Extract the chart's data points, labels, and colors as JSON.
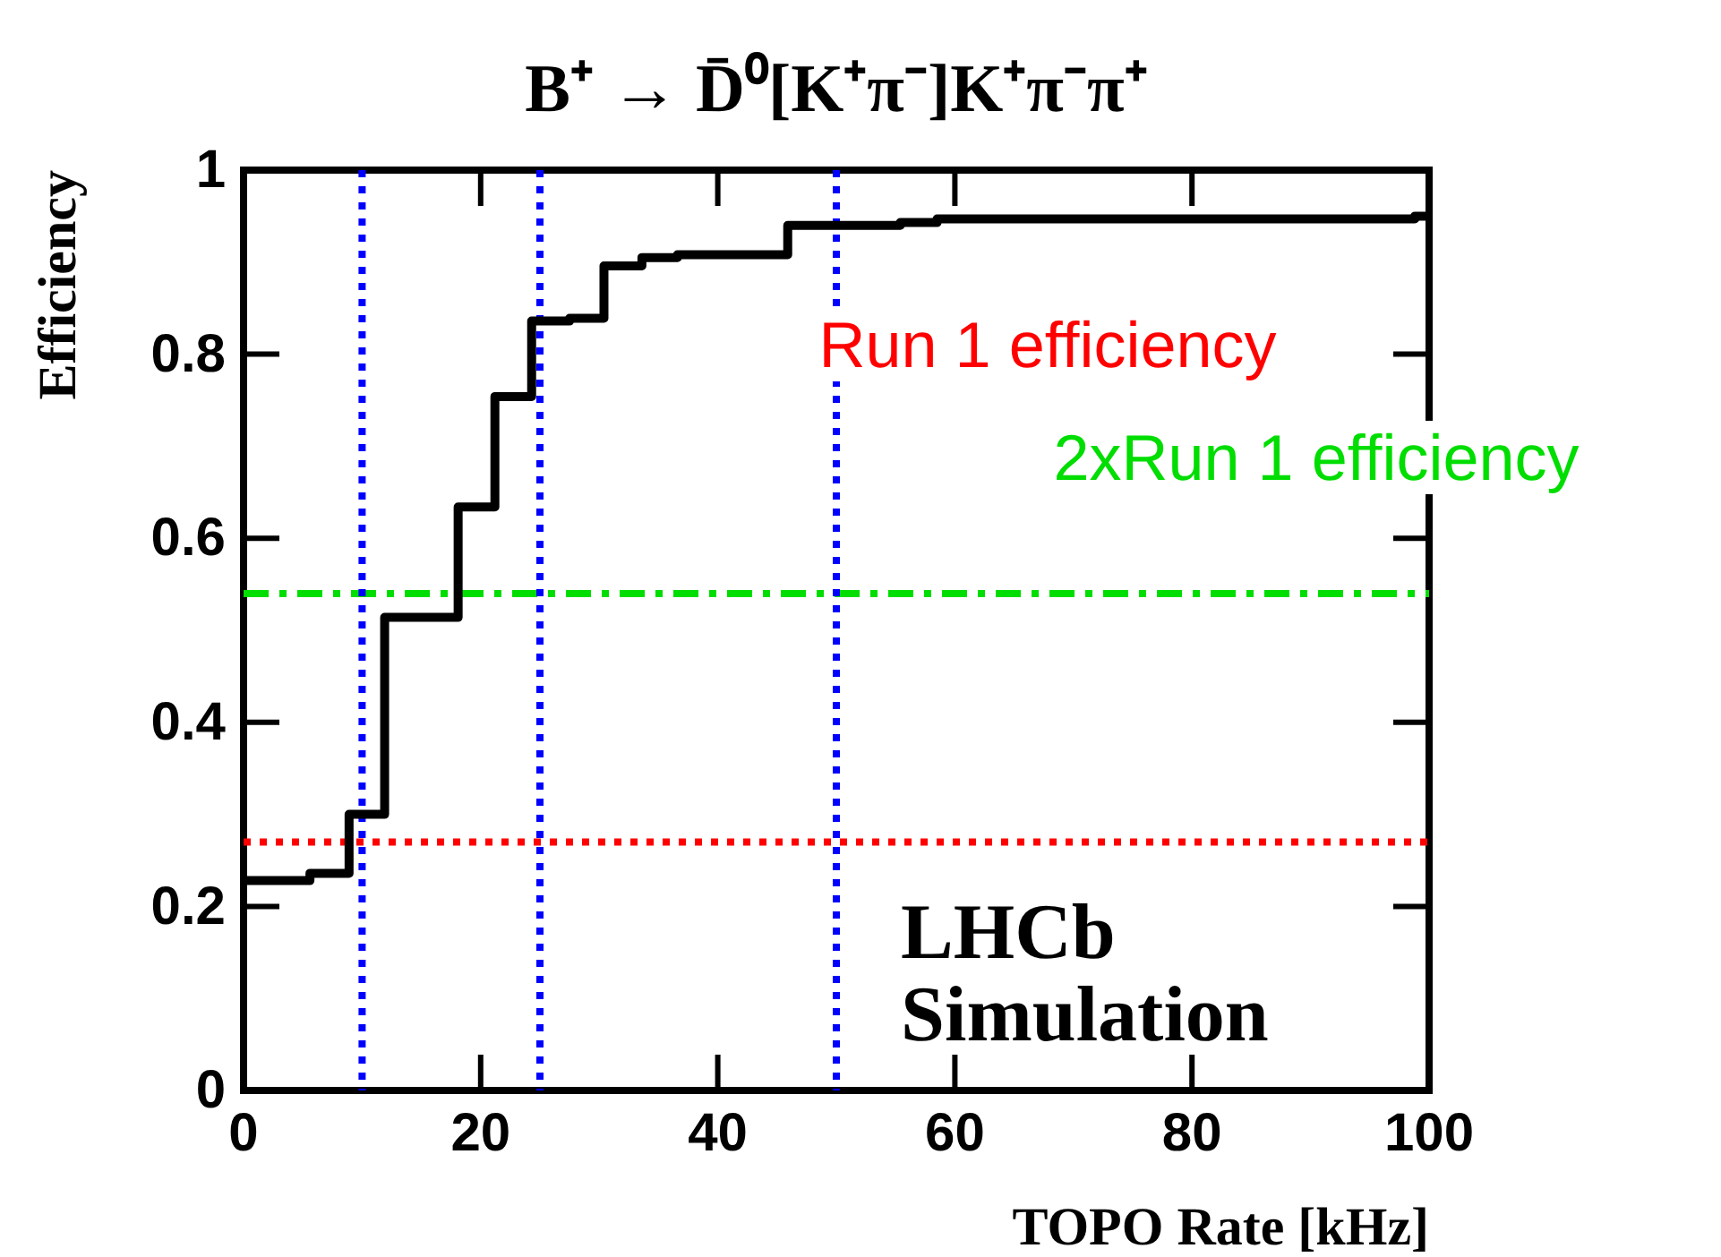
{
  "chart_data": {
    "type": "step",
    "title": "B⁺ → D̄⁰[K⁺π⁻]K⁺π⁻π⁺",
    "xlabel": "TOPO Rate [kHz]",
    "ylabel": "Efficiency",
    "x": [
      0,
      5.6,
      8.9,
      11.9,
      18.1,
      21.2,
      24.3,
      27.5,
      30.4,
      33.6,
      36.6,
      45.9,
      55.4,
      58.5,
      98.8,
      100
    ],
    "series": [
      {
        "color": "#000000",
        "values": [
          0.228,
          0.236,
          0.3,
          0.514,
          0.634,
          0.754,
          0.836,
          0.839,
          0.896,
          0.905,
          0.908,
          0.94,
          0.943,
          0.947,
          0.95,
          0.95
        ]
      }
    ],
    "xlim": [
      0,
      100
    ],
    "xticks": [
      0,
      20,
      40,
      60,
      80,
      100
    ],
    "ylim": [
      0,
      1
    ],
    "yticks": [
      0,
      0.2,
      0.4,
      0.6,
      0.8,
      1
    ],
    "grid": false,
    "ref_lines": [
      {
        "axis": "y",
        "value": 0.27,
        "label": "Run 1 efficiency",
        "color": "#ff0000",
        "line_style": "dotted"
      },
      {
        "axis": "y",
        "value": 0.54,
        "label": "2xRun 1 efficiency",
        "color": "#00dd00",
        "line_style": "dashdot"
      },
      {
        "axis": "x",
        "value": 10,
        "color": "#0000ff",
        "line_style": "dotted"
      },
      {
        "axis": "x",
        "value": 25,
        "color": "#0000ff",
        "line_style": "dotted"
      },
      {
        "axis": "x",
        "value": 50,
        "color": "#0000ff",
        "line_style": "dotted"
      }
    ],
    "annotations": [
      "LHCb Simulation"
    ]
  }
}
